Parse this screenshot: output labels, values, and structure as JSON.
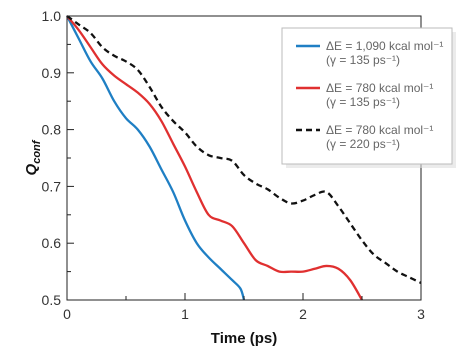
{
  "chart_data": {
    "type": "line",
    "xlabel": "Time (ps)",
    "ylabel": "Q_conf",
    "ylabel_main": "Q",
    "ylabel_sub": "conf",
    "xlim": [
      0,
      3
    ],
    "ylim": [
      0.5,
      1.0
    ],
    "xticks": [
      0,
      1,
      2,
      3
    ],
    "xtick_labels": [
      "0",
      "1",
      "2",
      "3"
    ],
    "yticks": [
      0.5,
      0.6,
      0.7,
      0.8,
      0.9,
      1.0
    ],
    "ytick_labels": [
      "0.5",
      "0.6",
      "0.7",
      "0.8",
      "0.9",
      "1.0"
    ],
    "grid": false,
    "legend_position": "top-right",
    "series": [
      {
        "name": "ΔE = 1,090 kcal mol⁻¹ (γ = 135 ps⁻¹)",
        "legend_line1": "ΔE = 1,090 kcal mol⁻¹",
        "legend_line2": "(γ = 135 ps⁻¹)",
        "color": "#1f7fc4",
        "dash": "solid",
        "x": [
          0,
          0.1,
          0.2,
          0.3,
          0.4,
          0.5,
          0.6,
          0.7,
          0.8,
          0.9,
          1.0,
          1.1,
          1.2,
          1.3,
          1.4,
          1.47,
          1.5
        ],
        "y": [
          1.0,
          0.96,
          0.92,
          0.89,
          0.85,
          0.82,
          0.8,
          0.77,
          0.73,
          0.69,
          0.64,
          0.6,
          0.575,
          0.555,
          0.535,
          0.52,
          0.5
        ]
      },
      {
        "name": "ΔE = 780 kcal mol⁻¹ (γ = 135 ps⁻¹)",
        "legend_line1": "ΔE = 780 kcal mol⁻¹",
        "legend_line2": "(γ = 135 ps⁻¹)",
        "color": "#e03030",
        "dash": "solid",
        "x": [
          0,
          0.1,
          0.2,
          0.3,
          0.4,
          0.5,
          0.6,
          0.7,
          0.8,
          0.9,
          1.0,
          1.1,
          1.2,
          1.3,
          1.4,
          1.5,
          1.6,
          1.7,
          1.8,
          1.9,
          2.0,
          2.1,
          2.2,
          2.3,
          2.4,
          2.5
        ],
        "y": [
          1.0,
          0.975,
          0.945,
          0.915,
          0.895,
          0.88,
          0.865,
          0.845,
          0.815,
          0.775,
          0.735,
          0.69,
          0.65,
          0.64,
          0.63,
          0.6,
          0.57,
          0.56,
          0.55,
          0.55,
          0.55,
          0.555,
          0.56,
          0.555,
          0.535,
          0.5
        ]
      },
      {
        "name": "ΔE = 780 kcal mol⁻¹ (γ = 220 ps⁻¹)",
        "legend_line1": "ΔE = 780 kcal mol⁻¹",
        "legend_line2": "(γ = 220 ps⁻¹)",
        "color": "#111111",
        "dash": "dashed",
        "x": [
          0,
          0.1,
          0.2,
          0.3,
          0.4,
          0.5,
          0.6,
          0.7,
          0.8,
          0.9,
          1.0,
          1.1,
          1.2,
          1.3,
          1.4,
          1.5,
          1.6,
          1.7,
          1.8,
          1.9,
          2.0,
          2.1,
          2.2,
          2.3,
          2.4,
          2.5,
          2.6,
          2.7,
          2.8,
          2.9,
          3.0
        ],
        "y": [
          1.0,
          0.985,
          0.97,
          0.945,
          0.93,
          0.92,
          0.905,
          0.875,
          0.84,
          0.815,
          0.795,
          0.77,
          0.755,
          0.75,
          0.745,
          0.72,
          0.705,
          0.695,
          0.68,
          0.67,
          0.675,
          0.685,
          0.69,
          0.665,
          0.635,
          0.605,
          0.58,
          0.565,
          0.55,
          0.54,
          0.53
        ]
      }
    ]
  }
}
